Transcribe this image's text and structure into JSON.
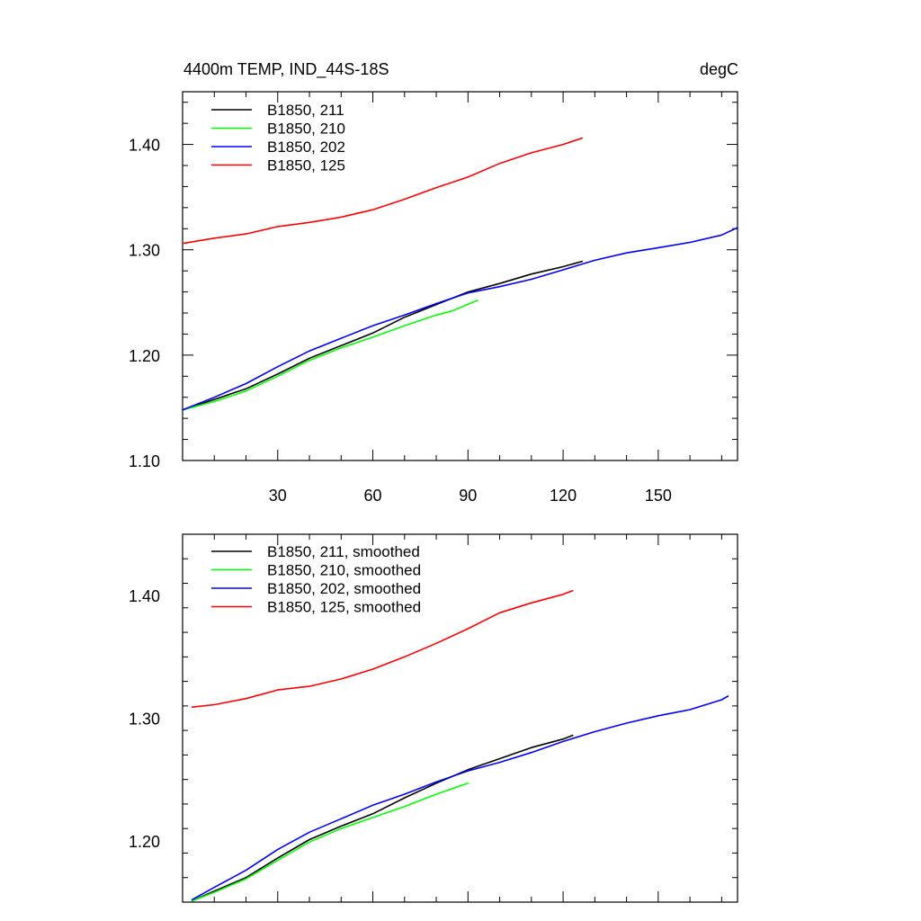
{
  "figure": {
    "title_left": "4400m TEMP, IND_44S-18S",
    "title_right": "degC"
  },
  "chart_data": [
    {
      "type": "line",
      "name": "raw",
      "xlim": [
        0,
        175
      ],
      "ylim": [
        1.1,
        1.45
      ],
      "x_ticks": [
        30,
        60,
        90,
        120,
        150
      ],
      "x_tick_labels": [
        "30",
        "60",
        "90",
        "120",
        "150"
      ],
      "y_ticks": [
        1.1,
        1.2,
        1.3,
        1.4
      ],
      "y_tick_labels": [
        "1.10",
        "1.20",
        "1.30",
        "1.40"
      ],
      "legend_position": "top-left",
      "series": [
        {
          "name": "B1850, 211",
          "color": "#000000",
          "x": [
            0,
            10,
            20,
            30,
            40,
            50,
            60,
            70,
            80,
            90,
            100,
            110,
            120,
            126
          ],
          "y": [
            1.148,
            1.158,
            1.168,
            1.182,
            1.197,
            1.209,
            1.221,
            1.236,
            1.248,
            1.26,
            1.268,
            1.277,
            1.284,
            1.289
          ]
        },
        {
          "name": "B1850, 210",
          "color": "#00ff00",
          "x": [
            0,
            10,
            20,
            30,
            40,
            50,
            60,
            70,
            80,
            85,
            93
          ],
          "y": [
            1.148,
            1.156,
            1.166,
            1.18,
            1.195,
            1.207,
            1.217,
            1.228,
            1.238,
            1.242,
            1.252
          ]
        },
        {
          "name": "B1850, 202",
          "color": "#0000ff",
          "x": [
            0,
            10,
            20,
            30,
            40,
            50,
            60,
            70,
            80,
            90,
            100,
            110,
            120,
            130,
            140,
            150,
            160,
            170,
            175
          ],
          "y": [
            1.148,
            1.16,
            1.173,
            1.189,
            1.204,
            1.216,
            1.228,
            1.238,
            1.249,
            1.259,
            1.265,
            1.272,
            1.281,
            1.29,
            1.297,
            1.302,
            1.307,
            1.314,
            1.321
          ]
        },
        {
          "name": "B1850, 125",
          "color": "#ff0000",
          "x": [
            0,
            10,
            20,
            30,
            40,
            50,
            60,
            70,
            80,
            90,
            100,
            110,
            120,
            126
          ],
          "y": [
            1.306,
            1.311,
            1.315,
            1.322,
            1.326,
            1.331,
            1.338,
            1.348,
            1.359,
            1.369,
            1.382,
            1.392,
            1.4,
            1.406
          ]
        }
      ]
    },
    {
      "type": "line",
      "name": "smoothed",
      "xlim": [
        0,
        175
      ],
      "ylim": [
        1.15,
        1.45
      ],
      "x_ticks": [
        30,
        60,
        90,
        120,
        150
      ],
      "y_ticks": [
        1.2,
        1.3,
        1.4
      ],
      "y_tick_labels": [
        "1.20",
        "1.30",
        "1.40"
      ],
      "legend_position": "top-left",
      "series": [
        {
          "name": "B1850, 211, smoothed",
          "color": "#000000",
          "x": [
            3,
            10,
            20,
            30,
            40,
            50,
            60,
            70,
            80,
            90,
            100,
            110,
            120,
            123
          ],
          "y": [
            1.151,
            1.159,
            1.17,
            1.186,
            1.201,
            1.212,
            1.222,
            1.235,
            1.247,
            1.258,
            1.267,
            1.276,
            1.283,
            1.286
          ]
        },
        {
          "name": "B1850, 210, smoothed",
          "color": "#00ff00",
          "x": [
            3,
            10,
            20,
            30,
            40,
            50,
            60,
            70,
            80,
            90
          ],
          "y": [
            1.151,
            1.158,
            1.169,
            1.184,
            1.199,
            1.21,
            1.219,
            1.228,
            1.238,
            1.247
          ]
        },
        {
          "name": "B1850, 202, smoothed",
          "color": "#0000ff",
          "x": [
            3,
            10,
            20,
            30,
            40,
            50,
            60,
            70,
            80,
            90,
            100,
            110,
            120,
            130,
            140,
            150,
            160,
            170,
            172
          ],
          "y": [
            1.152,
            1.162,
            1.176,
            1.193,
            1.207,
            1.218,
            1.229,
            1.238,
            1.248,
            1.257,
            1.264,
            1.272,
            1.281,
            1.289,
            1.296,
            1.302,
            1.307,
            1.315,
            1.318
          ]
        },
        {
          "name": "B1850, 125, smoothed",
          "color": "#ff0000",
          "x": [
            3,
            10,
            20,
            30,
            40,
            50,
            60,
            70,
            80,
            90,
            100,
            110,
            120,
            123
          ],
          "y": [
            1.309,
            1.311,
            1.316,
            1.323,
            1.326,
            1.332,
            1.34,
            1.35,
            1.361,
            1.373,
            1.386,
            1.394,
            1.401,
            1.404
          ]
        }
      ]
    }
  ]
}
